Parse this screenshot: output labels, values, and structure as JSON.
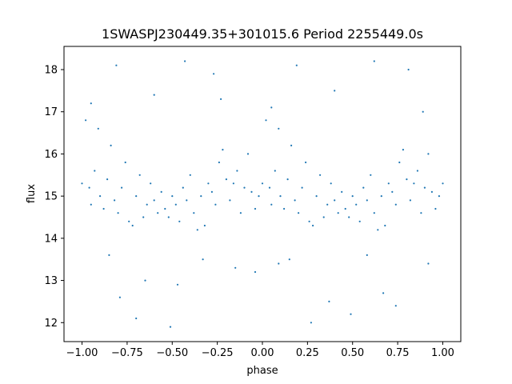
{
  "chart_data": {
    "type": "scatter",
    "title": "1SWASPJ230449.35+301015.6 Period 2255449.0s",
    "xlabel": "phase",
    "ylabel": "flux",
    "xlim": [
      -1.1,
      1.1
    ],
    "ylim": [
      11.55,
      18.55
    ],
    "x_ticks": [
      -1.0,
      -0.75,
      -0.5,
      -0.25,
      0.0,
      0.25,
      0.5,
      0.75,
      1.0
    ],
    "x_tick_labels": [
      "−1.00",
      "−0.75",
      "−0.50",
      "−0.25",
      "0.00",
      "0.25",
      "0.50",
      "0.75",
      "1.00"
    ],
    "y_ticks": [
      12,
      13,
      14,
      15,
      16,
      17,
      18
    ],
    "y_tick_labels": [
      "12",
      "13",
      "14",
      "15",
      "16",
      "17",
      "18"
    ],
    "grid": false,
    "marker_color": "#1f77b4",
    "series": [
      {
        "points": [
          [
            -1.0,
            15.3
          ],
          [
            -0.98,
            16.8
          ],
          [
            -0.96,
            15.2
          ],
          [
            -0.95,
            14.8
          ],
          [
            -0.93,
            15.6
          ],
          [
            -0.91,
            16.6
          ],
          [
            -0.9,
            15.0
          ],
          [
            -0.88,
            14.7
          ],
          [
            -0.86,
            15.4
          ],
          [
            -0.84,
            16.2
          ],
          [
            -0.82,
            14.9
          ],
          [
            -0.8,
            14.6
          ],
          [
            -0.78,
            15.2
          ],
          [
            -0.76,
            15.8
          ],
          [
            -0.74,
            14.4
          ],
          [
            -0.72,
            14.3
          ],
          [
            -0.7,
            15.0
          ],
          [
            -0.68,
            15.5
          ],
          [
            -0.66,
            14.5
          ],
          [
            -0.64,
            14.8
          ],
          [
            -0.62,
            15.3
          ],
          [
            -0.6,
            14.9
          ],
          [
            -0.58,
            14.6
          ],
          [
            -0.56,
            15.1
          ],
          [
            -0.54,
            14.7
          ],
          [
            -0.52,
            14.5
          ],
          [
            -0.5,
            15.0
          ],
          [
            -0.48,
            14.8
          ],
          [
            -0.46,
            14.4
          ],
          [
            -0.44,
            15.2
          ],
          [
            -0.42,
            14.9
          ],
          [
            -0.4,
            15.5
          ],
          [
            -0.38,
            14.6
          ],
          [
            -0.36,
            14.2
          ],
          [
            -0.34,
            15.0
          ],
          [
            -0.32,
            14.3
          ],
          [
            -0.3,
            15.3
          ],
          [
            -0.28,
            15.1
          ],
          [
            -0.26,
            14.8
          ],
          [
            -0.24,
            15.8
          ],
          [
            -0.22,
            16.1
          ],
          [
            -0.2,
            15.4
          ],
          [
            -0.18,
            14.9
          ],
          [
            -0.16,
            15.3
          ],
          [
            -0.14,
            15.6
          ],
          [
            -0.12,
            14.6
          ],
          [
            -0.1,
            15.2
          ],
          [
            -0.08,
            16.0
          ],
          [
            -0.06,
            15.1
          ],
          [
            -0.04,
            14.7
          ],
          [
            -0.02,
            15.0
          ],
          [
            0.0,
            15.3
          ],
          [
            0.02,
            16.8
          ],
          [
            0.04,
            15.2
          ],
          [
            0.05,
            14.8
          ],
          [
            0.07,
            15.6
          ],
          [
            0.09,
            16.6
          ],
          [
            0.1,
            15.0
          ],
          [
            0.12,
            14.7
          ],
          [
            0.14,
            15.4
          ],
          [
            0.16,
            16.2
          ],
          [
            0.18,
            14.9
          ],
          [
            0.2,
            14.6
          ],
          [
            0.22,
            15.2
          ],
          [
            0.24,
            15.8
          ],
          [
            0.26,
            14.4
          ],
          [
            0.28,
            14.3
          ],
          [
            0.3,
            15.0
          ],
          [
            0.32,
            15.5
          ],
          [
            0.34,
            14.5
          ],
          [
            0.36,
            14.8
          ],
          [
            0.38,
            15.3
          ],
          [
            0.4,
            14.9
          ],
          [
            0.42,
            14.6
          ],
          [
            0.44,
            15.1
          ],
          [
            0.46,
            14.7
          ],
          [
            0.48,
            14.5
          ],
          [
            0.5,
            15.0
          ],
          [
            0.52,
            14.8
          ],
          [
            0.54,
            14.4
          ],
          [
            0.56,
            15.2
          ],
          [
            0.58,
            14.9
          ],
          [
            0.6,
            15.5
          ],
          [
            0.62,
            14.6
          ],
          [
            0.64,
            14.2
          ],
          [
            0.66,
            15.0
          ],
          [
            0.68,
            14.3
          ],
          [
            0.7,
            15.3
          ],
          [
            0.72,
            15.1
          ],
          [
            0.74,
            14.8
          ],
          [
            0.76,
            15.8
          ],
          [
            0.78,
            16.1
          ],
          [
            0.8,
            15.4
          ],
          [
            0.82,
            14.9
          ],
          [
            0.84,
            15.3
          ],
          [
            0.86,
            15.6
          ],
          [
            0.88,
            14.6
          ],
          [
            0.9,
            15.2
          ],
          [
            0.92,
            16.0
          ],
          [
            0.94,
            15.1
          ],
          [
            0.96,
            14.7
          ],
          [
            0.98,
            15.0
          ],
          [
            1.0,
            15.3
          ],
          [
            -0.81,
            18.1
          ],
          [
            -0.27,
            17.9
          ],
          [
            0.19,
            18.1
          ],
          [
            0.62,
            18.2
          ],
          [
            0.81,
            18.0
          ],
          [
            -0.43,
            18.2
          ],
          [
            -0.65,
            13.0
          ],
          [
            0.37,
            12.5
          ],
          [
            -0.79,
            12.6
          ],
          [
            0.67,
            12.7
          ],
          [
            -0.47,
            12.9
          ],
          [
            -0.15,
            13.3
          ],
          [
            0.09,
            13.4
          ],
          [
            -0.7,
            12.1
          ],
          [
            0.27,
            12.0
          ],
          [
            -0.51,
            11.9
          ],
          [
            0.49,
            12.2
          ],
          [
            -0.95,
            17.2
          ],
          [
            0.05,
            17.1
          ],
          [
            0.89,
            17.0
          ],
          [
            -0.6,
            17.4
          ],
          [
            0.4,
            17.5
          ],
          [
            -0.23,
            17.3
          ],
          [
            -0.85,
            13.6
          ],
          [
            0.15,
            13.5
          ],
          [
            0.92,
            13.4
          ],
          [
            -0.33,
            13.5
          ],
          [
            0.58,
            13.6
          ],
          [
            -0.04,
            13.2
          ],
          [
            0.74,
            12.4
          ]
        ]
      }
    ]
  }
}
